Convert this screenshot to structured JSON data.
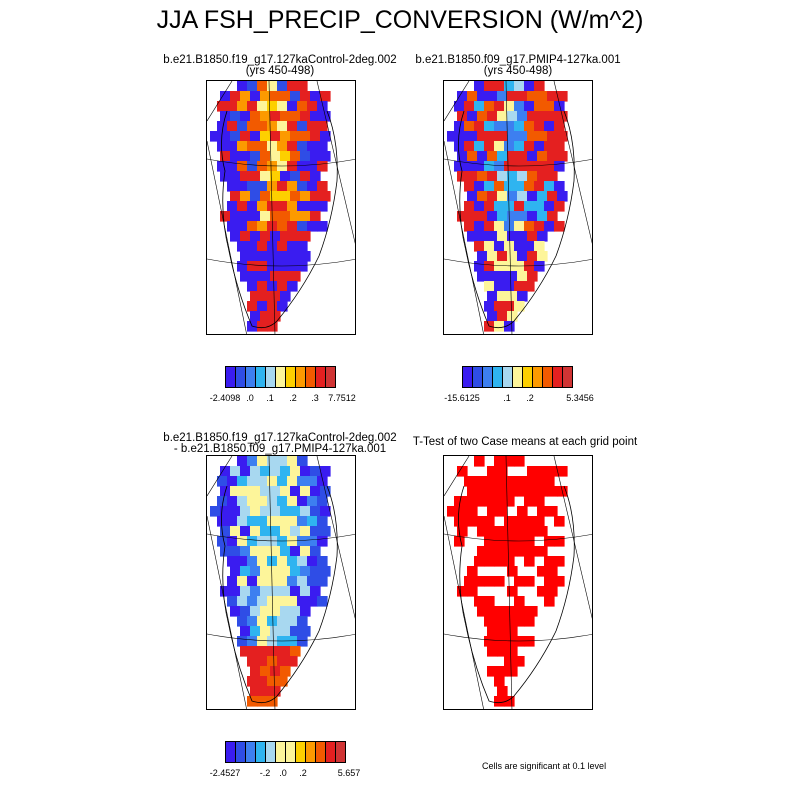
{
  "title": "JJA FSH_PRECIP_CONVERSION (W/m^2)",
  "panels": [
    {
      "line1": "b.e21.B1850.f19_g17.127kaControl-2deg.002",
      "line2": "(yrs 450-498)",
      "colorbar_labels": [
        "-2.4098",
        ".0",
        ".1",
        ".2",
        ".3",
        "7.7512"
      ]
    },
    {
      "line1": "b.e21.B1850.f09_g17.PMIP4-127ka.001",
      "line2": "(yrs 450-498)",
      "colorbar_labels": [
        "-15.6125",
        ".1",
        ".2",
        "5.3456"
      ]
    },
    {
      "line1": "b.e21.B1850.f19_g17.127kaControl-2deg.002",
      "line2": "- b.e21.B1850.f09_g17.PMIP4-127ka.001",
      "colorbar_labels": [
        "-2.4527",
        "-.2",
        ".0",
        ".2",
        "5.657"
      ]
    },
    {
      "line1": "T-Test of two Case means at each grid point",
      "line2": ""
    }
  ],
  "significance_note": "Cells are significant at 0.1 level",
  "colors": {
    "palette": [
      "#3a1cf0",
      "#2f4de6",
      "#3d7ff0",
      "#2fb4f0",
      "#a8d8f0",
      "#fdf59a",
      "#fdd000",
      "#fc9a00",
      "#f25a00",
      "#e42020",
      "#d03434"
    ],
    "significant": "#ff0000",
    "coast": "#000000"
  }
}
